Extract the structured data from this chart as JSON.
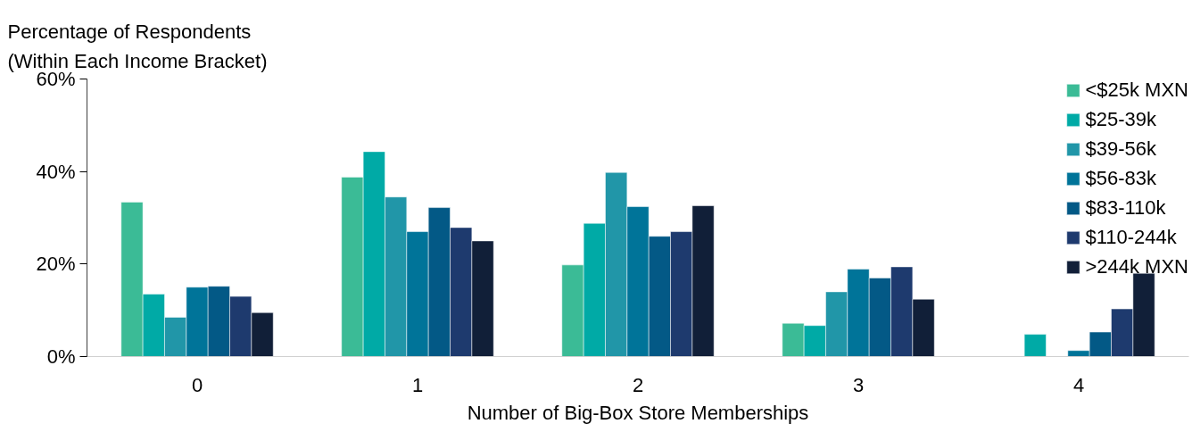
{
  "chart_data": {
    "type": "bar",
    "ylabel": "Percentage of Respondents\n(Within Each Income Bracket)",
    "xlabel": "Number of Big-Box Store Memberships",
    "categories": [
      "0",
      "1",
      "2",
      "3",
      "4"
    ],
    "series": [
      {
        "name": "<$25k MXN",
        "color": "#3bbb96",
        "values": [
          33.4,
          38.8,
          19.8,
          7.2,
          null
        ]
      },
      {
        "name": "$25-39k",
        "color": "#00aaa6",
        "values": [
          13.5,
          44.3,
          28.8,
          6.7,
          4.8
        ]
      },
      {
        "name": "$39-56k",
        "color": "#2196a8",
        "values": [
          8.5,
          34.5,
          39.8,
          14,
          null
        ]
      },
      {
        "name": "$56-83k",
        "color": "#007499",
        "values": [
          15,
          27,
          32.4,
          18.9,
          1.3
        ]
      },
      {
        "name": "$83-110k",
        "color": "#035986",
        "values": [
          15.2,
          32.2,
          26,
          17,
          5.3
        ]
      },
      {
        "name": "$110-244k",
        "color": "#1e3a6e",
        "values": [
          13,
          27.9,
          27,
          19.4,
          10.3
        ]
      },
      {
        "name": ">244k MXN",
        "color": "#111f38",
        "values": [
          9.5,
          25,
          32.6,
          12.4,
          18
        ]
      }
    ],
    "ylim": [
      0,
      60
    ],
    "yticks": [
      {
        "value": 0,
        "label": "0%"
      },
      {
        "value": 20,
        "label": "20%"
      },
      {
        "value": 40,
        "label": "40%"
      },
      {
        "value": 60,
        "label": "60%"
      }
    ],
    "grid": false,
    "legend": "top right"
  }
}
